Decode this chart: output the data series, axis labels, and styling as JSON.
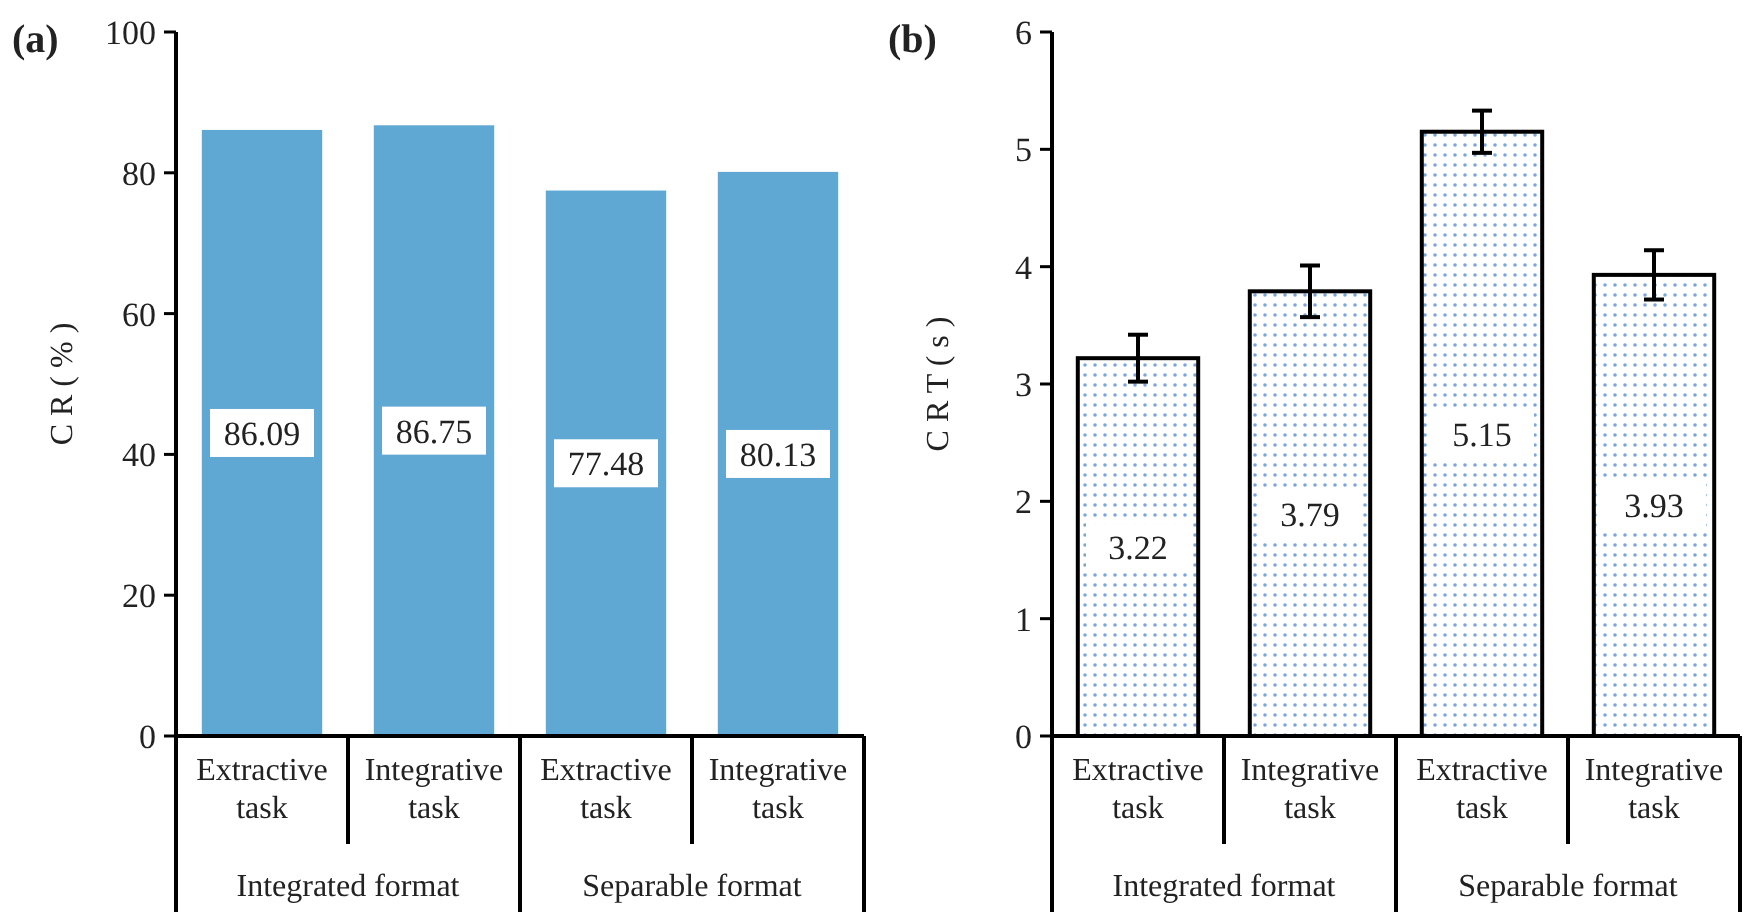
{
  "chart_data": [
    {
      "type": "bar",
      "title": "(a)",
      "ylabel": "C R ( % )",
      "categories": [
        "Extractive task",
        "Integrative task",
        "Extractive task",
        "Integrative task"
      ],
      "values": [
        86.09,
        86.75,
        77.48,
        80.13
      ],
      "color": "#5fa8d3",
      "ylim": [
        0,
        100
      ],
      "yticks": [
        0,
        20,
        40,
        60,
        80,
        100
      ],
      "data_labels": true,
      "annotations": [
        "Integrated format",
        "Separable format"
      ]
    },
    {
      "type": "bar",
      "title": "(b)",
      "ylabel": "C R T ( s )",
      "categories": [
        "Extractive task",
        "Integrative task",
        "Extractive task",
        "Integrative task"
      ],
      "values": [
        3.22,
        3.79,
        5.15,
        3.93
      ],
      "errors": [
        0.2,
        0.22,
        0.18,
        0.21
      ],
      "color": "#7aa6dc",
      "ylim": [
        0,
        6
      ],
      "yticks": [
        0,
        1,
        2,
        3,
        4,
        5,
        6
      ],
      "data_labels": true,
      "annotations": [
        "Integrated format",
        "Separable format"
      ]
    }
  ]
}
